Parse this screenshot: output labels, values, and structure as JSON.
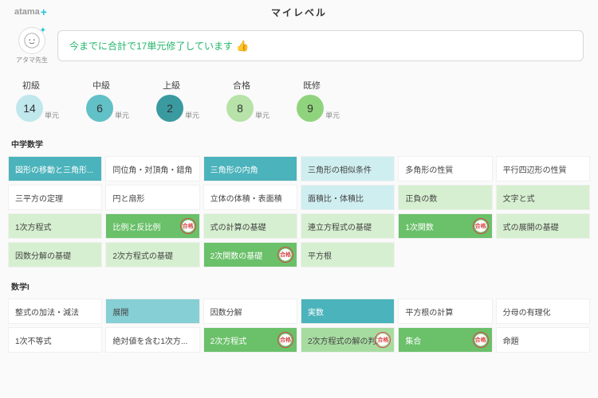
{
  "header": {
    "logo_text": "atama",
    "logo_plus": "+",
    "title": "マイレベル"
  },
  "avatar": {
    "label": "アタマ先生"
  },
  "speech": {
    "text": "今までに合計で17単元修了しています",
    "emoji": "👍"
  },
  "stats": [
    {
      "label": "初級",
      "value": "14",
      "color": "#bfe7ec"
    },
    {
      "label": "中級",
      "value": "6",
      "color": "#62c0c7"
    },
    {
      "label": "上級",
      "value": "2",
      "color": "#3a9aa0"
    },
    {
      "label": "合格",
      "value": "8",
      "color": "#b7e2a8"
    },
    {
      "label": "既修",
      "value": "9",
      "color": "#8fd47c"
    }
  ],
  "unit_suffix": "単元",
  "colors": {
    "teal_dark": "#4bb3bb",
    "teal_mid": "#86cfd4",
    "teal_light": "#cfeef0",
    "green_dark": "#6bc06a",
    "green_mid": "#a7dca1",
    "green_light": "#d6efd0",
    "white": "#ffffff"
  },
  "sections": [
    {
      "title": "中学数学",
      "rows": [
        [
          {
            "label": "図形の移動と三角形...",
            "bg": "teal_dark",
            "fg": "#fff"
          },
          {
            "label": "同位角・対頂角・錯角",
            "bg": "white"
          },
          {
            "label": "三角形の内角",
            "bg": "teal_dark",
            "fg": "#fff"
          },
          {
            "label": "三角形の相似条件",
            "bg": "teal_light"
          },
          {
            "label": "多角形の性質",
            "bg": "white"
          },
          {
            "label": "平行四辺形の性質",
            "bg": "white"
          }
        ],
        [
          {
            "label": "三平方の定理",
            "bg": "white"
          },
          {
            "label": "円と扇形",
            "bg": "white"
          },
          {
            "label": "立体の体積・表面積",
            "bg": "white"
          },
          {
            "label": "面積比・体積比",
            "bg": "teal_light"
          },
          {
            "label": "正負の数",
            "bg": "green_light"
          },
          {
            "label": "文字と式",
            "bg": "green_light"
          }
        ],
        [
          {
            "label": "1次方程式",
            "bg": "green_light"
          },
          {
            "label": "比例と反比例",
            "bg": "green_dark",
            "fg": "#fff",
            "stamp": true
          },
          {
            "label": "式の計算の基礎",
            "bg": "green_light"
          },
          {
            "label": "連立方程式の基礎",
            "bg": "green_light"
          },
          {
            "label": "1次関数",
            "bg": "green_dark",
            "fg": "#fff",
            "stamp": true
          },
          {
            "label": "式の展開の基礎",
            "bg": "green_light"
          }
        ],
        [
          {
            "label": "因数分解の基礎",
            "bg": "green_light"
          },
          {
            "label": "2次方程式の基礎",
            "bg": "green_light"
          },
          {
            "label": "2次関数の基礎",
            "bg": "green_dark",
            "fg": "#fff",
            "stamp": true
          },
          {
            "label": "平方根",
            "bg": "green_light"
          },
          {
            "label": "",
            "bg": "none"
          },
          {
            "label": "",
            "bg": "none"
          }
        ]
      ]
    },
    {
      "title": "数学I",
      "rows": [
        [
          {
            "label": "整式の加法・減法",
            "bg": "white"
          },
          {
            "label": "展開",
            "bg": "teal_mid"
          },
          {
            "label": "因数分解",
            "bg": "white"
          },
          {
            "label": "実数",
            "bg": "teal_dark",
            "fg": "#fff"
          },
          {
            "label": "平方根の計算",
            "bg": "white"
          },
          {
            "label": "分母の有理化",
            "bg": "white"
          }
        ],
        [
          {
            "label": "1次不等式",
            "bg": "white"
          },
          {
            "label": "絶対値を含む1次方...",
            "bg": "white"
          },
          {
            "label": "2次方程式",
            "bg": "green_dark",
            "fg": "#fff",
            "stamp": true
          },
          {
            "label": "2次方程式の解の判別",
            "bg": "green_mid",
            "stamp": true
          },
          {
            "label": "集合",
            "bg": "green_dark",
            "fg": "#fff",
            "stamp": true
          },
          {
            "label": "命題",
            "bg": "white"
          }
        ]
      ]
    }
  ]
}
